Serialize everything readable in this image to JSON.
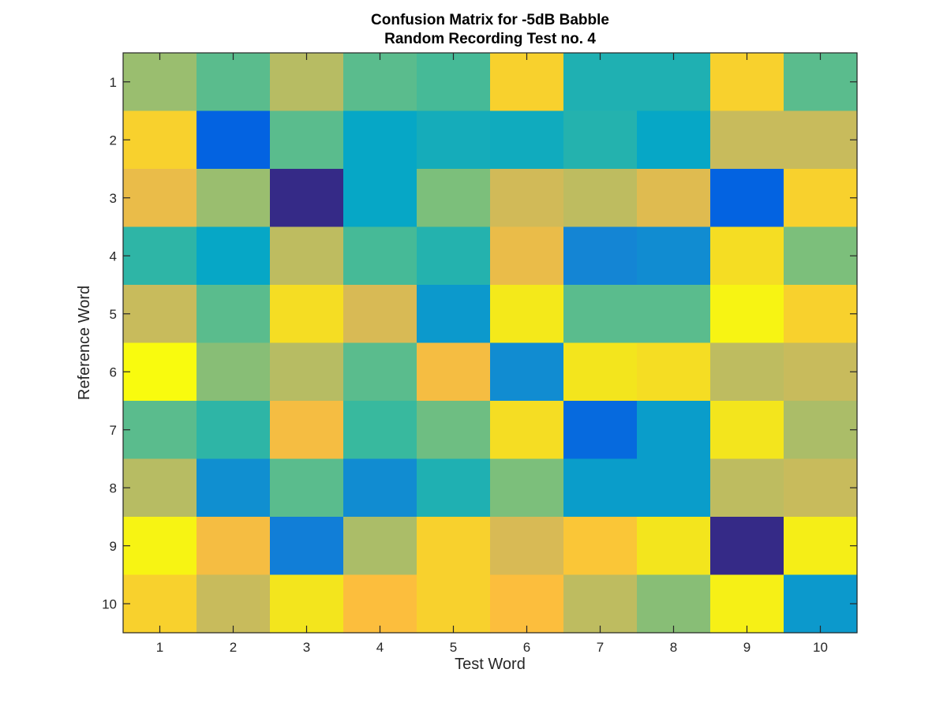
{
  "chart_data": {
    "type": "heatmap",
    "title": "Confusion Matrix for -5dB Babble",
    "subtitle": "Random Recording Test no. 4",
    "xlabel": "Test Word",
    "ylabel": "Reference Word",
    "x_categories": [
      "1",
      "2",
      "3",
      "4",
      "5",
      "6",
      "7",
      "8",
      "9",
      "10"
    ],
    "y_categories": [
      "1",
      "2",
      "3",
      "4",
      "5",
      "6",
      "7",
      "8",
      "9",
      "10"
    ],
    "colormap": "parula",
    "colorbar": false,
    "grid": false,
    "values": [
      [
        0.55,
        0.45,
        0.6,
        0.45,
        0.42,
        0.85,
        0.35,
        0.35,
        0.85,
        0.45
      ],
      [
        0.85,
        0.1,
        0.45,
        0.3,
        0.33,
        0.32,
        0.36,
        0.3,
        0.65,
        0.65
      ],
      [
        0.75,
        0.55,
        0.0,
        0.3,
        0.5,
        0.68,
        0.62,
        0.72,
        0.1,
        0.85
      ],
      [
        0.38,
        0.3,
        0.62,
        0.42,
        0.36,
        0.75,
        0.2,
        0.22,
        0.88,
        0.5
      ],
      [
        0.65,
        0.45,
        0.88,
        0.7,
        0.26,
        0.92,
        0.45,
        0.45,
        0.97,
        0.85
      ],
      [
        1.0,
        0.52,
        0.6,
        0.45,
        0.78,
        0.22,
        0.9,
        0.88,
        0.62,
        0.65
      ],
      [
        0.45,
        0.38,
        0.78,
        0.4,
        0.48,
        0.88,
        0.12,
        0.27,
        0.9,
        0.58
      ],
      [
        0.6,
        0.23,
        0.45,
        0.22,
        0.35,
        0.5,
        0.27,
        0.27,
        0.62,
        0.65
      ],
      [
        0.97,
        0.78,
        0.18,
        0.58,
        0.85,
        0.7,
        0.82,
        0.9,
        0.0,
        0.94
      ],
      [
        0.85,
        0.65,
        0.9,
        0.8,
        0.85,
        0.8,
        0.62,
        0.52,
        0.95,
        0.26
      ]
    ]
  }
}
